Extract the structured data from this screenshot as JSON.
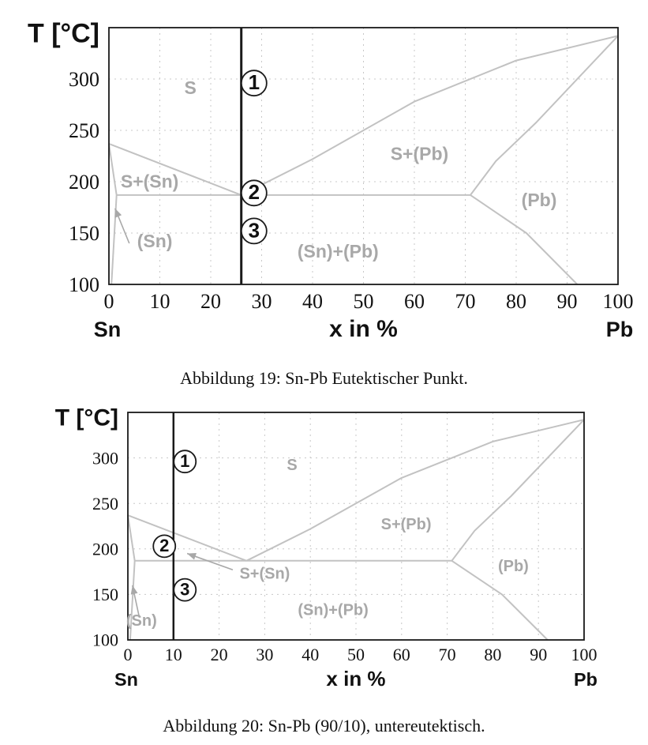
{
  "colors": {
    "frame": "#1a1a1a",
    "phase_line": "#c2c2c2",
    "phase_label": "#a8a8a8",
    "grid": "#c8c8c8",
    "marker_line": "#1a1a1a"
  },
  "chart_data": [
    {
      "type": "phase-diagram",
      "caption": "Abbildung 19: Sn-Pb Eutektischer Punkt.",
      "ylabel": "T [°C]",
      "xlabel": "x  in %",
      "x_left_label": "Sn",
      "x_right_label": "Pb",
      "xlim": [
        0,
        100
      ],
      "ylim": [
        100,
        350
      ],
      "x_ticks": [
        0,
        10,
        20,
        30,
        40,
        50,
        60,
        70,
        80,
        90,
        100
      ],
      "y_ticks": [
        100,
        150,
        200,
        250,
        300
      ],
      "grid": true,
      "composition_line_x": 26,
      "curves": [
        {
          "name": "liquidus-left",
          "points": [
            [
              0,
              237
            ],
            [
              26,
              187
            ]
          ]
        },
        {
          "name": "liquidus-right",
          "points": [
            [
              26,
              187
            ],
            [
              40,
              222
            ],
            [
              60,
              278
            ],
            [
              80,
              318
            ],
            [
              100,
              342
            ]
          ]
        },
        {
          "name": "eutectic-line",
          "points": [
            [
              1.5,
              187
            ],
            [
              71,
              187
            ]
          ]
        },
        {
          "name": "solidus-pb",
          "points": [
            [
              71,
              187
            ],
            [
              76,
              220
            ],
            [
              84,
              258
            ],
            [
              100,
              342
            ]
          ]
        },
        {
          "name": "solvus-pb",
          "points": [
            [
              71,
              187
            ],
            [
              82,
              150
            ],
            [
              92,
              100
            ]
          ]
        },
        {
          "name": "solvus-sn-top",
          "points": [
            [
              0,
              237
            ],
            [
              1.5,
              187
            ]
          ]
        },
        {
          "name": "solvus-sn-bottom",
          "points": [
            [
              1.5,
              187
            ],
            [
              0.5,
              100
            ]
          ]
        }
      ],
      "labels": [
        {
          "text": "S",
          "x": 16,
          "y": 290
        },
        {
          "text": "S+(Pb)",
          "x": 61,
          "y": 226
        },
        {
          "text": "S+(Sn)",
          "x": 8,
          "y": 199
        },
        {
          "text": "(Pb)",
          "x": 84.5,
          "y": 181
        },
        {
          "text": "(Sn)+(Pb)",
          "x": 45,
          "y": 131
        },
        {
          "text": "(Sn)",
          "x": 9,
          "y": 141
        }
      ],
      "arrows": [
        {
          "from": [
            4,
            140
          ],
          "to": [
            1.2,
            174
          ]
        }
      ],
      "markers": [
        {
          "text": "1",
          "x": 28.5,
          "y": 296
        },
        {
          "text": "2",
          "x": 28.5,
          "y": 189
        },
        {
          "text": "3",
          "x": 28.5,
          "y": 152
        }
      ]
    },
    {
      "type": "phase-diagram",
      "caption": "Abbildung 20: Sn-Pb (90/10), untereutektisch.",
      "ylabel": "T [°C]",
      "xlabel": "x  in %",
      "x_left_label": "Sn",
      "x_right_label": "Pb",
      "xlim": [
        0,
        100
      ],
      "ylim": [
        100,
        350
      ],
      "x_ticks": [
        0,
        10,
        20,
        30,
        40,
        50,
        60,
        70,
        80,
        90,
        100
      ],
      "y_ticks": [
        100,
        150,
        200,
        250,
        300
      ],
      "grid": true,
      "composition_line_x": 10,
      "curves": [
        {
          "name": "liquidus-left",
          "points": [
            [
              0,
              237
            ],
            [
              26,
              187
            ]
          ]
        },
        {
          "name": "liquidus-right",
          "points": [
            [
              26,
              187
            ],
            [
              40,
              222
            ],
            [
              60,
              278
            ],
            [
              80,
              318
            ],
            [
              100,
              342
            ]
          ]
        },
        {
          "name": "eutectic-line",
          "points": [
            [
              1.5,
              187
            ],
            [
              71,
              187
            ]
          ]
        },
        {
          "name": "solidus-pb",
          "points": [
            [
              71,
              187
            ],
            [
              76,
              220
            ],
            [
              84,
              258
            ],
            [
              100,
              342
            ]
          ]
        },
        {
          "name": "solvus-pb",
          "points": [
            [
              71,
              187
            ],
            [
              82,
              150
            ],
            [
              92,
              100
            ]
          ]
        },
        {
          "name": "solvus-sn-top",
          "points": [
            [
              0,
              237
            ],
            [
              1.5,
              187
            ]
          ]
        },
        {
          "name": "solvus-sn-bottom",
          "points": [
            [
              1.5,
              187
            ],
            [
              0.5,
              100
            ]
          ]
        }
      ],
      "labels": [
        {
          "text": "S",
          "x": 36,
          "y": 291
        },
        {
          "text": "S+(Pb)",
          "x": 61,
          "y": 226
        },
        {
          "text": "S+(Sn)",
          "x": 30,
          "y": 172
        },
        {
          "text": "(Pb)",
          "x": 84.5,
          "y": 180
        },
        {
          "text": "(Sn)+(Pb)",
          "x": 45,
          "y": 132
        },
        {
          "text": "(Sn)",
          "x": 3,
          "y": 120
        }
      ],
      "arrows": [
        {
          "from": [
            2.5,
            125
          ],
          "to": [
            1.0,
            160
          ]
        },
        {
          "from": [
            23,
            177
          ],
          "to": [
            13,
            195
          ]
        }
      ],
      "markers": [
        {
          "text": "1",
          "x": 12.5,
          "y": 296
        },
        {
          "text": "2",
          "x": 8,
          "y": 203
        },
        {
          "text": "3",
          "x": 12.5,
          "y": 155
        }
      ]
    }
  ]
}
